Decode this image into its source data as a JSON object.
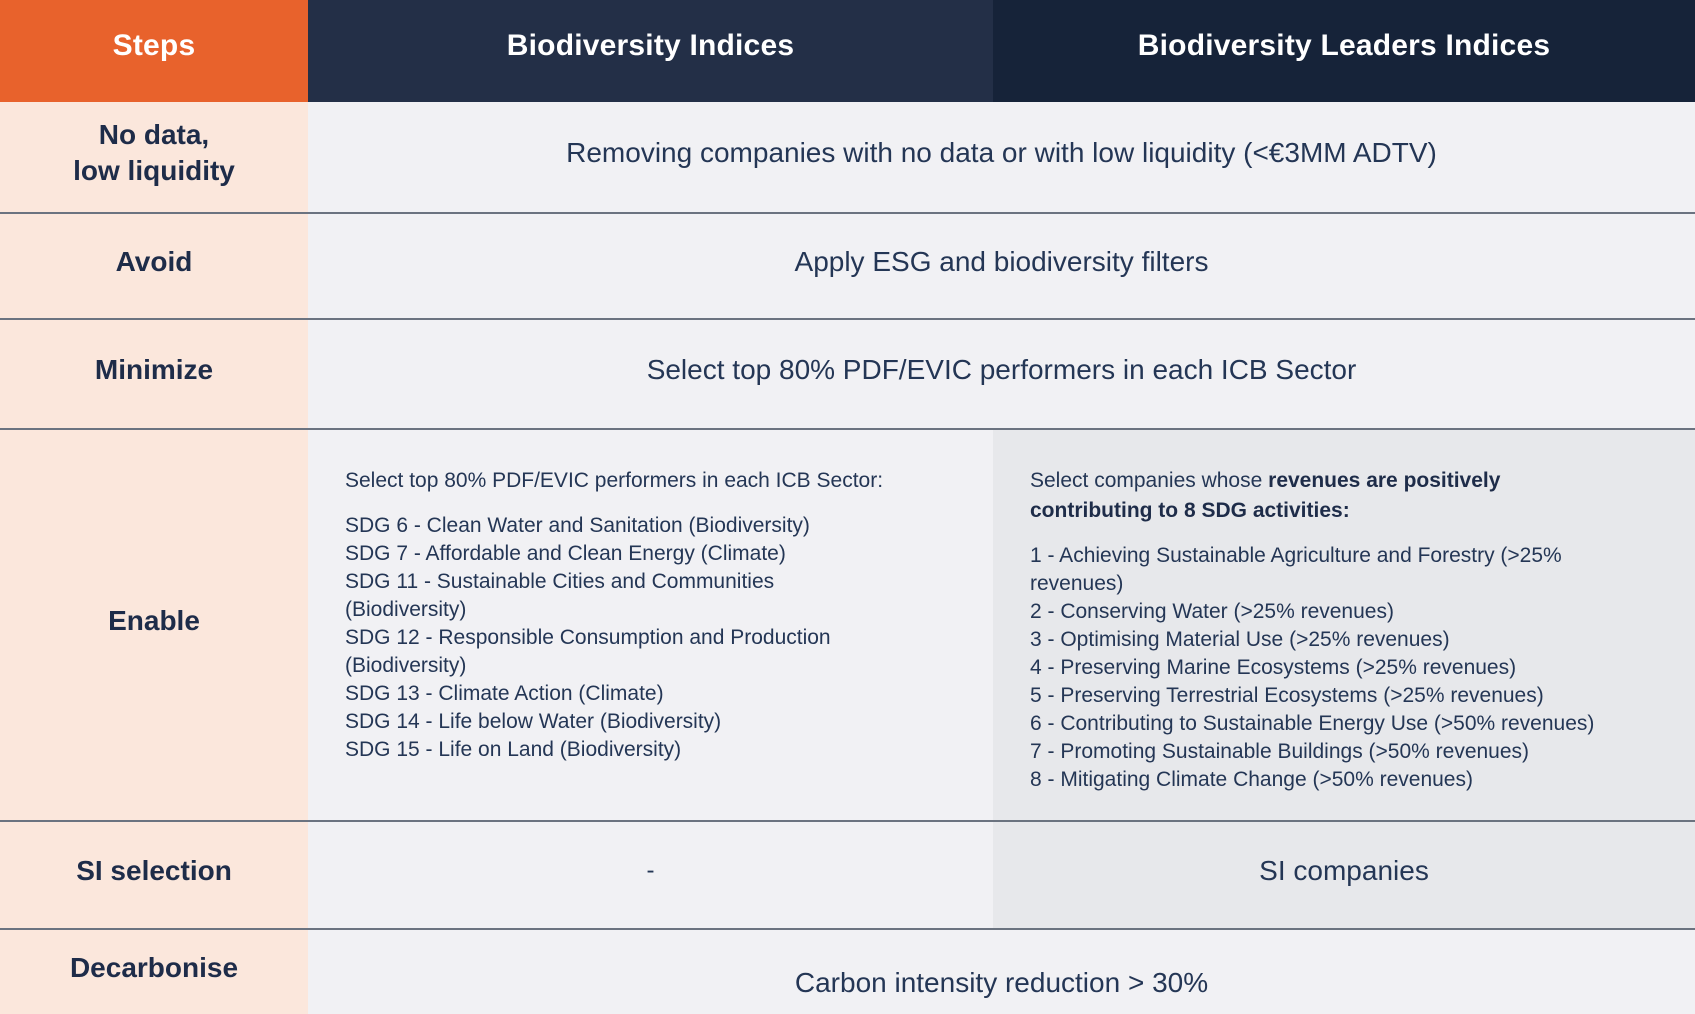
{
  "colors": {
    "orange": "#E8622C",
    "navy1": "#232F47",
    "navy2": "#162339",
    "peach": "#FBE7DC",
    "gray1": "#F1F1F4",
    "gray2": "#E7E8EB",
    "divider": "#6B7380",
    "label": "#1E2C49",
    "body": "#243655"
  },
  "table": {
    "header": {
      "steps": "Steps",
      "biodiversity": "Biodiversity Indices",
      "leaders": "Biodiversity Leaders Indices"
    },
    "rows": {
      "no_data": {
        "label": [
          "No data,",
          "low liquidity"
        ],
        "content": "Removing companies with no data or with low liquidity (<€3MM ADTV)"
      },
      "avoid": {
        "label": "Avoid",
        "content": "Apply ESG and biodiversity filters"
      },
      "minimize": {
        "label": "Minimize",
        "content": "Select top 80% PDF/EVIC performers in each ICB Sector"
      },
      "enable": {
        "label": "Enable",
        "left": {
          "intro": "Select top 80% PDF/EVIC performers in each ICB Sector:",
          "items": [
            "SDG 6 - Clean Water and Sanitation (Biodiversity)",
            "SDG 7 - Affordable and Clean Energy (Climate)",
            "SDG 11 - Sustainable Cities and Communities",
            "(Biodiversity)",
            "SDG 12 - Responsible Consumption and Production",
            "(Biodiversity)",
            "SDG 13 - Climate Action (Climate)",
            "SDG 14 - Life below Water (Biodiversity)",
            "SDG 15 - Life on Land (Biodiversity)"
          ]
        },
        "right": {
          "intro_normal": "Select companies whose ",
          "intro_bold": [
            "revenues are positively",
            "contributing to 8 SDG activities:"
          ],
          "items": [
            "1 - Achieving Sustainable Agriculture and Forestry (>25%",
            "revenues)",
            "2 - Conserving Water (>25% revenues)",
            "3 - Optimising Material Use (>25% revenues)",
            "4 - Preserving Marine Ecosystems (>25% revenues)",
            "5 - Preserving Terrestrial Ecosystems (>25% revenues)",
            "6 - Contributing to Sustainable Energy Use (>50% revenues)",
            "7 - Promoting Sustainable Buildings (>50% revenues)",
            "8 - Mitigating Climate Change (>50% revenues)"
          ]
        }
      },
      "si_selection": {
        "label": "SI selection",
        "left": "-",
        "right": "SI companies"
      },
      "decarbonise": {
        "label": "Decarbonise",
        "content": "Carbon intensity reduction > 30%"
      }
    }
  }
}
